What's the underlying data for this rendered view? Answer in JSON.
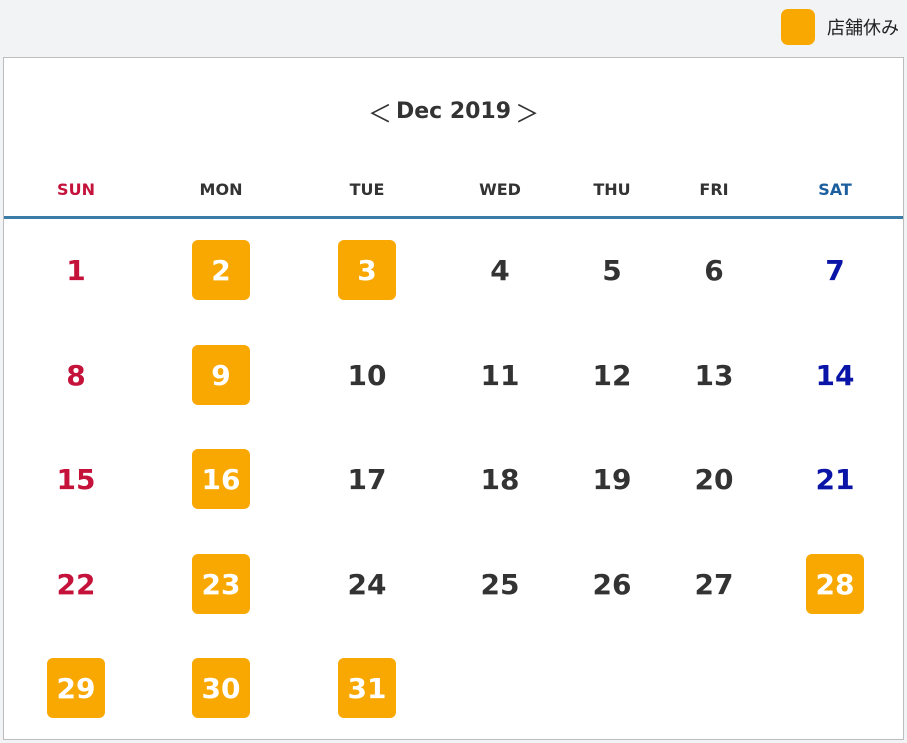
{
  "legend": {
    "label": "店舗休み",
    "color": "#f8a800"
  },
  "calendar": {
    "prev_label": "＜",
    "next_label": "＞",
    "month_label": "Dec 2019",
    "weekdays": [
      "SUN",
      "MON",
      "TUE",
      "WED",
      "THU",
      "FRI",
      "SAT"
    ],
    "weeks": [
      [
        {
          "d": "1"
        },
        {
          "d": "2",
          "closed": true
        },
        {
          "d": "3",
          "closed": true
        },
        {
          "d": "4"
        },
        {
          "d": "5"
        },
        {
          "d": "6"
        },
        {
          "d": "7"
        }
      ],
      [
        {
          "d": "8"
        },
        {
          "d": "9",
          "closed": true
        },
        {
          "d": "10"
        },
        {
          "d": "11"
        },
        {
          "d": "12"
        },
        {
          "d": "13"
        },
        {
          "d": "14"
        }
      ],
      [
        {
          "d": "15"
        },
        {
          "d": "16",
          "closed": true
        },
        {
          "d": "17"
        },
        {
          "d": "18"
        },
        {
          "d": "19"
        },
        {
          "d": "20"
        },
        {
          "d": "21"
        }
      ],
      [
        {
          "d": "22"
        },
        {
          "d": "23",
          "closed": true
        },
        {
          "d": "24"
        },
        {
          "d": "25"
        },
        {
          "d": "26"
        },
        {
          "d": "27"
        },
        {
          "d": "28",
          "closed": true
        }
      ],
      [
        {
          "d": "29",
          "closed": true
        },
        {
          "d": "30",
          "closed": true
        },
        {
          "d": "31",
          "closed": true
        },
        null,
        null,
        null,
        null
      ]
    ]
  }
}
